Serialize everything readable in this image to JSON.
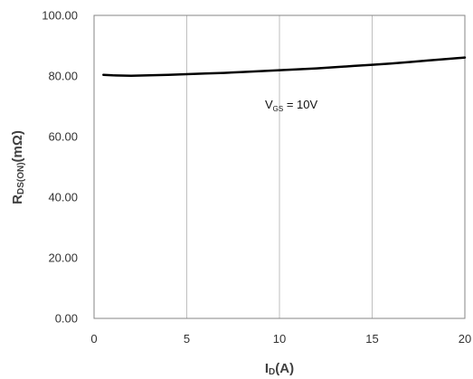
{
  "chart_data": {
    "type": "line",
    "x": [
      0.5,
      1,
      2,
      3,
      4,
      5,
      6,
      7,
      8,
      9,
      10,
      11,
      12,
      13,
      14,
      15,
      16,
      17,
      18,
      19,
      20
    ],
    "series": [
      {
        "values": [
          80.4,
          80.2,
          80.1,
          80.2,
          80.4,
          80.6,
          80.8,
          81.0,
          81.3,
          81.6,
          81.9,
          82.2,
          82.5,
          82.9,
          83.3,
          83.7,
          84.1,
          84.6,
          85.1,
          85.6,
          86.1
        ],
        "color": "#000000"
      }
    ],
    "xlim": [
      0,
      20
    ],
    "ylim": [
      0,
      100
    ],
    "xticks": [
      "0",
      "5",
      "10",
      "15",
      "20"
    ],
    "yticks": [
      "0.00",
      "20.00",
      "40.00",
      "60.00",
      "80.00",
      "100.00"
    ],
    "xlabel": {
      "main": "I",
      "sub": "D",
      "tail": "(A)"
    },
    "ylabel": {
      "main": "R",
      "sub": "DS(ON)",
      "tail": "(mΩ)"
    },
    "annotation": {
      "main": "V",
      "sub": "GS",
      "tail": " = 10V",
      "x": 11,
      "y": 70
    },
    "grid": {
      "vertical": true,
      "horizontal": false
    },
    "grid_color": "#bfbfbf",
    "axis_color": "#868686"
  }
}
